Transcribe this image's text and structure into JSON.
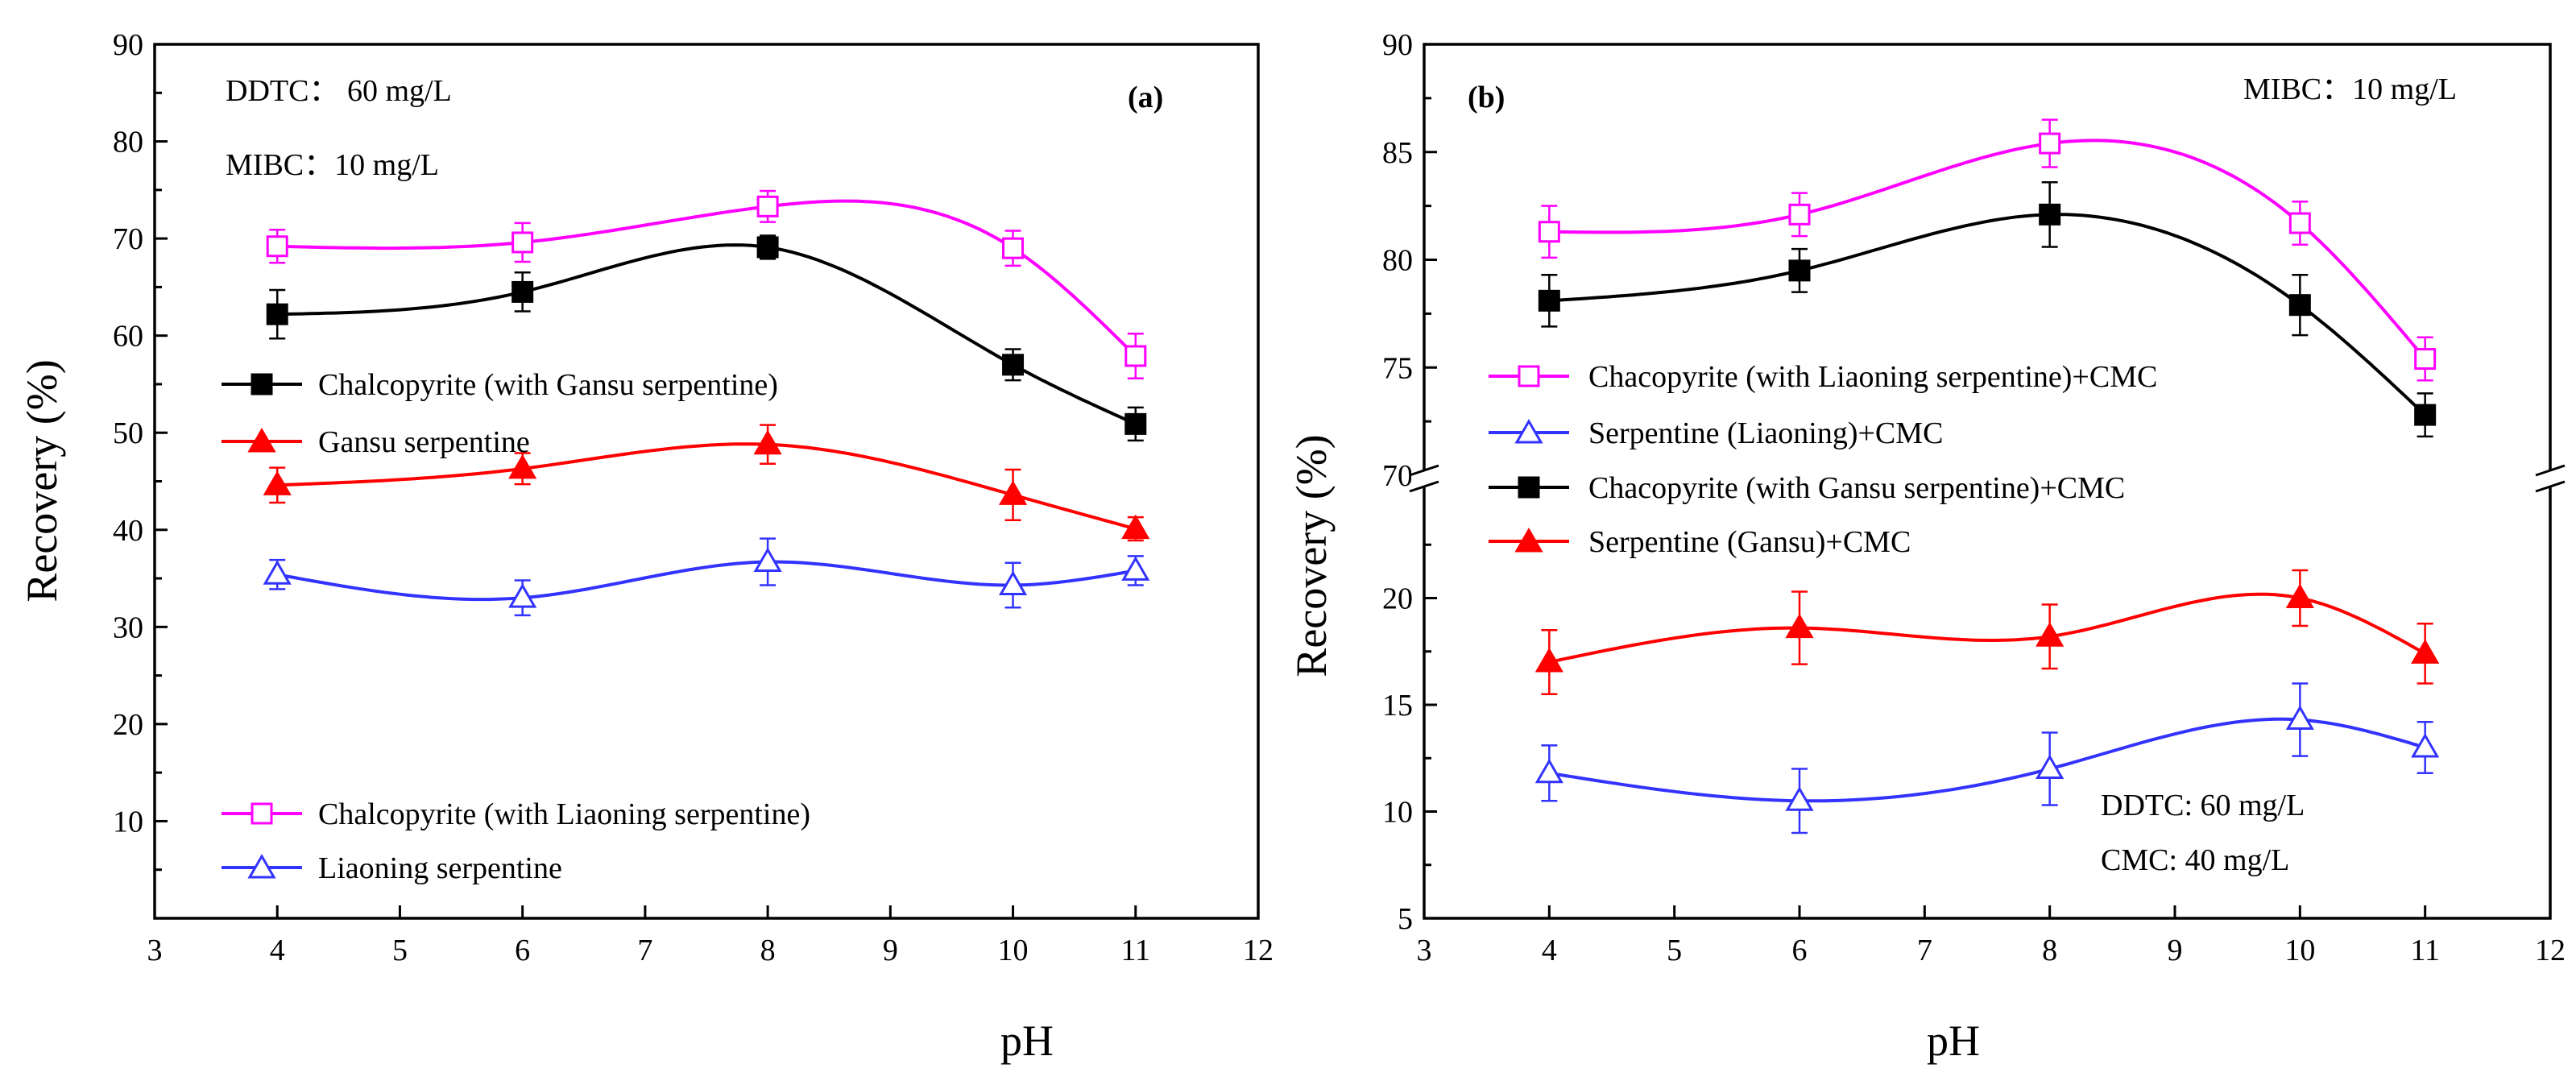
{
  "colors": {
    "black": "#000000",
    "red": "#ff0000",
    "magenta": "#ff00ff",
    "blue": "#3333ff"
  },
  "chart_data": [
    {
      "type": "line",
      "panel_label": "(a)",
      "xlabel": "pH",
      "ylabel": "Recovery (%)",
      "xlim": [
        3,
        12
      ],
      "ylim": [
        0,
        90
      ],
      "x_ticks": [
        "3",
        "4",
        "5",
        "6",
        "7",
        "8",
        "9",
        "10",
        "11",
        "12"
      ],
      "y_ticks": [
        "10",
        "20",
        "30",
        "40",
        "50",
        "60",
        "70",
        "80",
        "90"
      ],
      "annotations": [
        "DDTC： 60 mg/L",
        "MIBC：10 mg/L"
      ],
      "series": [
        {
          "name": "Chalcopyrite (with Gansu serpentine)",
          "color": "#000000",
          "marker": "filled-square",
          "x": [
            4,
            6,
            8,
            10,
            11
          ],
          "y": [
            62.2,
            64.5,
            69.1,
            57.0,
            50.9
          ],
          "err": [
            2.5,
            2.0,
            1.2,
            1.6,
            1.7
          ]
        },
        {
          "name": "Gansu serpentine",
          "color": "#ff0000",
          "marker": "filled-triangle",
          "x": [
            4,
            6,
            8,
            10,
            11
          ],
          "y": [
            44.6,
            46.3,
            48.8,
            43.6,
            40.1
          ],
          "err": [
            1.8,
            1.6,
            2.0,
            2.6,
            1.2
          ]
        },
        {
          "name": "Chalcopyrite (with Liaoning serpentine)",
          "color": "#ff00ff",
          "marker": "open-square",
          "x": [
            4,
            6,
            8,
            10,
            11
          ],
          "y": [
            69.2,
            69.6,
            73.3,
            69.0,
            57.9
          ],
          "err": [
            1.7,
            2.0,
            1.6,
            1.8,
            2.3
          ]
        },
        {
          "name": "Liaoning serpentine",
          "color": "#3333ff",
          "marker": "open-triangle",
          "x": [
            4,
            6,
            8,
            10,
            11
          ],
          "y": [
            35.4,
            33.0,
            36.7,
            34.3,
            35.8
          ],
          "err": [
            1.5,
            1.8,
            2.4,
            2.3,
            1.5
          ]
        }
      ]
    },
    {
      "type": "line",
      "panel_label": "(b)",
      "xlabel": "pH",
      "ylabel": "Recovery (%)",
      "xlim": [
        3,
        12
      ],
      "ylim_upper": [
        70,
        90
      ],
      "ylim_lower": [
        5,
        25
      ],
      "axis_break": true,
      "x_ticks": [
        "3",
        "4",
        "5",
        "6",
        "7",
        "8",
        "9",
        "10",
        "11",
        "12"
      ],
      "y_ticks_upper": [
        "70",
        "75",
        "80",
        "85",
        "90"
      ],
      "y_ticks_lower": [
        "5",
        "10",
        "15",
        "20"
      ],
      "annotations": [
        "MIBC：10 mg/L",
        "DDTC: 60 mg/L",
        "CMC: 40 mg/L"
      ],
      "series": [
        {
          "name": "Chacopyrite (with Liaoning serpentine)+CMC",
          "color": "#ff00ff",
          "marker": "open-square",
          "segment": "upper",
          "x": [
            4,
            6,
            8,
            10,
            11
          ],
          "y": [
            81.3,
            82.1,
            85.4,
            81.7,
            75.4
          ],
          "err": [
            1.2,
            1.0,
            1.1,
            1.0,
            1.0
          ]
        },
        {
          "name": "Serpentine (Liaoning)+CMC",
          "color": "#3333ff",
          "marker": "open-triangle",
          "segment": "lower",
          "x": [
            4,
            6,
            8,
            10,
            11
          ],
          "y": [
            11.8,
            10.5,
            12.0,
            14.3,
            13.0
          ],
          "err": [
            1.3,
            1.5,
            1.7,
            1.7,
            1.2
          ]
        },
        {
          "name": "Chacopyrite (with Gansu serpentine)+CMC",
          "color": "#000000",
          "marker": "filled-square",
          "segment": "upper",
          "x": [
            4,
            6,
            8,
            10,
            11
          ],
          "y": [
            78.1,
            79.5,
            82.1,
            77.9,
            72.8
          ],
          "err": [
            1.2,
            1.0,
            1.5,
            1.4,
            1.0
          ]
        },
        {
          "name": "Serpentine (Gansu)+CMC",
          "color": "#ff0000",
          "marker": "filled-triangle",
          "segment": "lower",
          "x": [
            4,
            6,
            8,
            10,
            11
          ],
          "y": [
            17.0,
            18.6,
            18.2,
            20.0,
            17.4
          ],
          "err": [
            1.5,
            1.7,
            1.5,
            1.3,
            1.4
          ]
        }
      ]
    }
  ]
}
